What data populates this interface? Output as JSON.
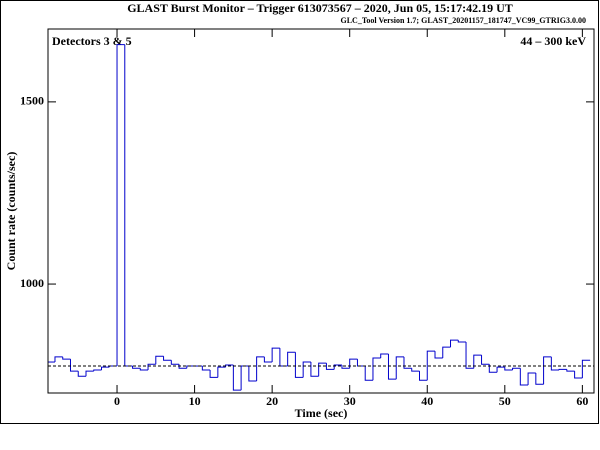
{
  "chart_data": {
    "type": "histogram",
    "title": "GLAST Burst Monitor  –  Trigger 613073567  –  2020, Jun 05, 15:17:42.19 UT",
    "subtitle": "GLC_Tool Version 1.7; GLAST_20201157_181747_VC99_GTRIG3.0.00",
    "annotations": [
      "Detectors 3 & 5",
      "44 – 300 keV"
    ],
    "x_label": "Time (sec)",
    "y_label": "Count rate (counts/sec)",
    "bins": [
      -9,
      -8,
      -7,
      -6,
      -5,
      -4,
      -3,
      -2,
      -1,
      0,
      1,
      2,
      3,
      4,
      5,
      6,
      7,
      8,
      9,
      10,
      11,
      12,
      13,
      14,
      15,
      16,
      17,
      18,
      19,
      20,
      21,
      22,
      23,
      24,
      25,
      26,
      27,
      28,
      29,
      30,
      31,
      32,
      33,
      34,
      35,
      36,
      37,
      38,
      39,
      40,
      41,
      42,
      43,
      44,
      45,
      46,
      47,
      48,
      49,
      50,
      51,
      52,
      53,
      54,
      55,
      56,
      57,
      58,
      59,
      60,
      61
    ],
    "counts": [
      786,
      800,
      794,
      761,
      747,
      761,
      764,
      772,
      775,
      1657,
      775,
      769,
      764,
      780,
      802,
      791,
      780,
      769,
      775,
      775,
      764,
      744,
      772,
      778,
      709,
      775,
      734,
      800,
      786,
      824,
      775,
      813,
      744,
      786,
      747,
      783,
      766,
      778,
      769,
      794,
      775,
      736,
      797,
      808,
      739,
      800,
      769,
      761,
      736,
      816,
      797,
      827,
      846,
      841,
      769,
      805,
      780,
      758,
      772,
      764,
      769,
      723,
      756,
      725,
      800,
      764,
      766,
      761,
      742,
      791
    ],
    "color": "#0000cc",
    "background_level": 775,
    "xlim": [
      -8.9,
      61.5
    ],
    "ylim": [
      701,
      1700
    ],
    "xticks": [
      0,
      10,
      20,
      30,
      40,
      50,
      60
    ],
    "yticks": [
      1000,
      1500
    ]
  }
}
